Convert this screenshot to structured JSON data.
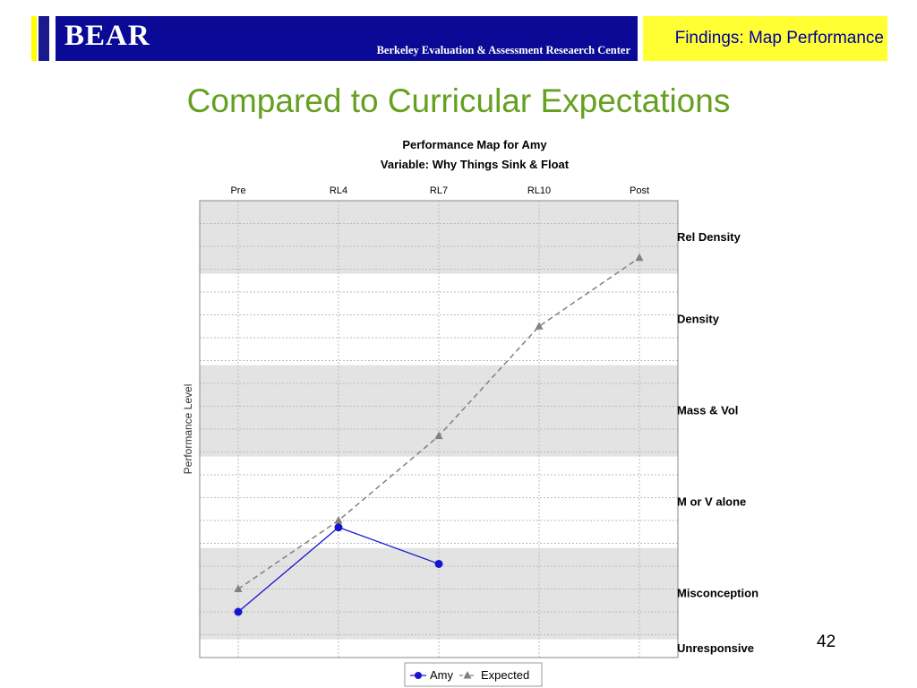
{
  "header": {
    "logo": "BEAR",
    "subtitle": "Berkeley Evaluation & Assessment Reseaerch Center",
    "section": "Findings: Map Performance"
  },
  "slide_title": "Compared to Curricular Expectations",
  "page_number": "42",
  "colors": {
    "amy": "#1515d0",
    "expected": "#808080",
    "band_shade": "#e3e3e3",
    "title_green": "#66a020"
  },
  "chart_data": {
    "type": "line",
    "title": "Performance Map for Amy",
    "subtitle": "Variable: Why Things Sink & Float",
    "ylabel": "Performance Level",
    "categories": [
      "Pre",
      "RL4",
      "RL7",
      "RL10",
      "Post"
    ],
    "levels": [
      "Unresponsive",
      "Misconception",
      "M or V alone",
      "Mass & Vol",
      "Density",
      "Rel Density"
    ],
    "ylim": [
      0,
      20
    ],
    "bands": [
      {
        "label": "Unresponsive",
        "from": 0,
        "to": 0.8,
        "shaded": false
      },
      {
        "label": "Misconception",
        "from": 0.8,
        "to": 4.8,
        "shaded": true
      },
      {
        "label": "M or V alone",
        "from": 4.8,
        "to": 8.8,
        "shaded": false
      },
      {
        "label": "Mass & Vol",
        "from": 8.8,
        "to": 12.8,
        "shaded": true
      },
      {
        "label": "Density",
        "from": 12.8,
        "to": 16.8,
        "shaded": false
      },
      {
        "label": "Rel Density",
        "from": 16.8,
        "to": 20,
        "shaded": true
      }
    ],
    "series": [
      {
        "name": "Amy",
        "values": [
          2,
          5.7,
          4.1,
          null,
          null
        ],
        "marker": "circle",
        "dashed": false
      },
      {
        "name": "Expected",
        "values": [
          3,
          6,
          9.7,
          14.5,
          17.5
        ],
        "marker": "triangle",
        "dashed": true
      }
    ],
    "grid": true,
    "legend": "bottom"
  }
}
